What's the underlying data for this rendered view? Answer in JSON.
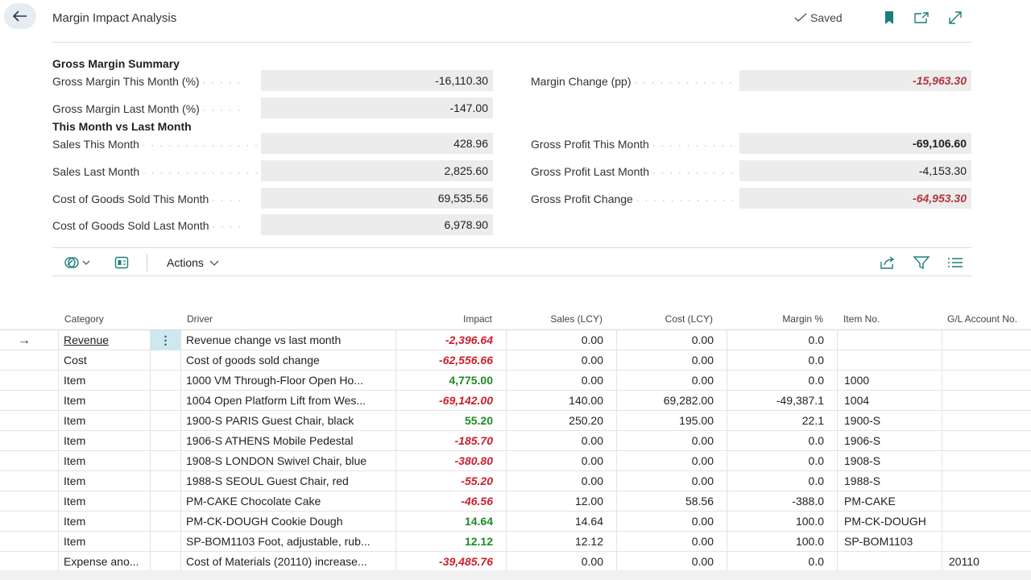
{
  "header": {
    "title": "Margin Impact Analysis",
    "saved_label": "Saved"
  },
  "summary": {
    "gross_margin_title": "Gross Margin Summary",
    "compare_title": "This Month vs Last Month",
    "fields": {
      "gm_this": {
        "label": "Gross Margin This Month (%)",
        "value": "-16,110.30"
      },
      "gm_last": {
        "label": "Gross Margin Last Month (%)",
        "value": "-147.00"
      },
      "margin_change": {
        "label": "Margin Change (pp)",
        "value": "-15,963.30"
      },
      "sales_this": {
        "label": "Sales This Month",
        "value": "428.96"
      },
      "sales_last": {
        "label": "Sales Last Month",
        "value": "2,825.60"
      },
      "cogs_this": {
        "label": "Cost of Goods Sold This Month",
        "value": "69,535.56"
      },
      "cogs_last": {
        "label": "Cost of Goods Sold Last Month",
        "value": "6,978.90"
      },
      "gp_this": {
        "label": "Gross Profit This Month",
        "value": "-69,106.60"
      },
      "gp_last": {
        "label": "Gross Profit Last Month",
        "value": "-4,153.30"
      },
      "gp_change": {
        "label": "Gross Profit Change",
        "value": "-64,953.30"
      }
    }
  },
  "toolbar": {
    "actions_label": "Actions"
  },
  "table": {
    "columns": {
      "category": "Category",
      "driver": "Driver",
      "impact": "Impact",
      "sales": "Sales (LCY)",
      "cost": "Cost (LCY)",
      "margin": "Margin %",
      "item_no": "Item No.",
      "gl_account": "G/L Account No."
    },
    "rows": [
      {
        "category": "Revenue",
        "driver": "Revenue change vs last month",
        "impact": "-2,396.64",
        "sales": "0.00",
        "cost": "0.00",
        "margin": "0.0",
        "item_no": "",
        "gl": ""
      },
      {
        "category": "Cost",
        "driver": "Cost of goods sold change",
        "impact": "-62,556.66",
        "sales": "0.00",
        "cost": "0.00",
        "margin": "0.0",
        "item_no": "",
        "gl": ""
      },
      {
        "category": "Item",
        "driver": "1000 VM Through-Floor Open Ho...",
        "impact": "4,775.00",
        "sales": "0.00",
        "cost": "0.00",
        "margin": "0.0",
        "item_no": "1000",
        "gl": ""
      },
      {
        "category": "Item",
        "driver": "1004 Open Platform Lift from Wes...",
        "impact": "-69,142.00",
        "sales": "140.00",
        "cost": "69,282.00",
        "margin": "-49,387.1",
        "item_no": "1004",
        "gl": ""
      },
      {
        "category": "Item",
        "driver": "1900-S PARIS Guest Chair, black",
        "impact": "55.20",
        "sales": "250.20",
        "cost": "195.00",
        "margin": "22.1",
        "item_no": "1900-S",
        "gl": ""
      },
      {
        "category": "Item",
        "driver": "1906-S ATHENS Mobile Pedestal",
        "impact": "-185.70",
        "sales": "0.00",
        "cost": "0.00",
        "margin": "0.0",
        "item_no": "1906-S",
        "gl": ""
      },
      {
        "category": "Item",
        "driver": "1908-S LONDON Swivel Chair, blue",
        "impact": "-380.80",
        "sales": "0.00",
        "cost": "0.00",
        "margin": "0.0",
        "item_no": "1908-S",
        "gl": ""
      },
      {
        "category": "Item",
        "driver": "1988-S SEOUL Guest Chair, red",
        "impact": "-55.20",
        "sales": "0.00",
        "cost": "0.00",
        "margin": "0.0",
        "item_no": "1988-S",
        "gl": ""
      },
      {
        "category": "Item",
        "driver": "PM-CAKE Chocolate Cake",
        "impact": "-46.56",
        "sales": "12.00",
        "cost": "58.56",
        "margin": "-388.0",
        "item_no": "PM-CAKE",
        "gl": ""
      },
      {
        "category": "Item",
        "driver": "PM-CK-DOUGH Cookie Dough",
        "impact": "14.64",
        "sales": "14.64",
        "cost": "0.00",
        "margin": "100.0",
        "item_no": "PM-CK-DOUGH",
        "gl": ""
      },
      {
        "category": "Item",
        "driver": "SP-BOM1103 Foot, adjustable, rub...",
        "impact": "12.12",
        "sales": "12.12",
        "cost": "0.00",
        "margin": "100.0",
        "item_no": "SP-BOM1103",
        "gl": ""
      },
      {
        "category": "Expense ano...",
        "driver": "Cost of Materials (20110) increase...",
        "impact": "-39,485.76",
        "sales": "0.00",
        "cost": "0.00",
        "margin": "0.0",
        "item_no": "",
        "gl": "20110"
      }
    ]
  },
  "colors": {
    "negative": "#cc1f2d",
    "positive": "#208a25",
    "accent": "#1a7f7a"
  }
}
